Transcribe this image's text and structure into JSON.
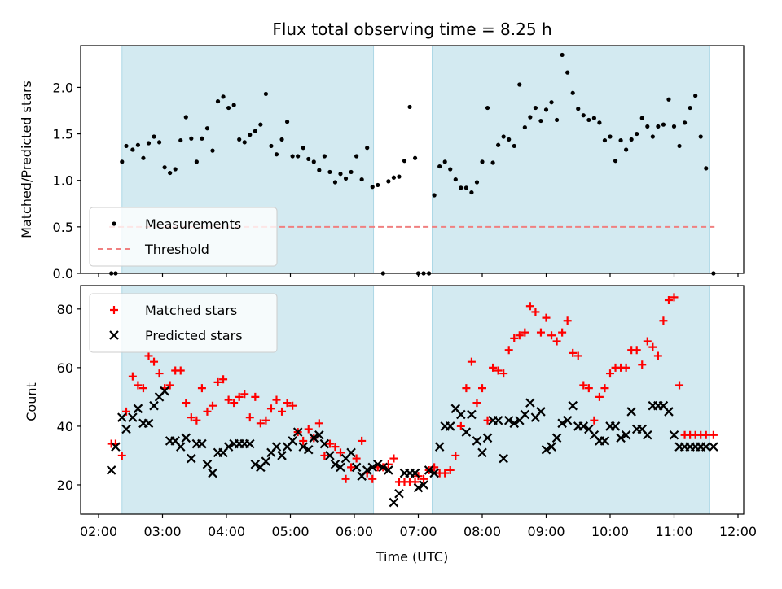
{
  "chart_data": [
    {
      "type": "scatter",
      "title": "Flux total observing time = 8.25 h",
      "xlabel": "",
      "ylabel": "Matched/Predicted stars",
      "ylim": [
        0,
        2.45
      ],
      "xlim": [
        "02:00",
        "12:00"
      ],
      "yticks": [
        "0.0",
        "0.5",
        "1.0",
        "1.5",
        "2.0"
      ],
      "ytick_values": [
        0,
        0.5,
        1.0,
        1.5,
        2.0
      ],
      "shaded_intervals": [
        [
          "02:22",
          "06:18"
        ],
        [
          "07:13",
          "11:33"
        ]
      ],
      "shade_color": "#d3eaf1",
      "legend_position": "lower-left",
      "threshold": {
        "name": "Threshold",
        "y": 0.5,
        "x_range": [
          "02:10",
          "11:38"
        ],
        "color": "#f08080",
        "style": "dashed"
      },
      "series": [
        {
          "name": "Measurements",
          "color": "#000000",
          "marker": "dot",
          "x": [
            "02:12",
            "02:16",
            "02:22",
            "02:26",
            "02:32",
            "02:37",
            "02:42",
            "02:47",
            "02:52",
            "02:57",
            "03:02",
            "03:07",
            "03:12",
            "03:17",
            "03:22",
            "03:27",
            "03:32",
            "03:37",
            "03:42",
            "03:47",
            "03:52",
            "03:57",
            "04:02",
            "04:07",
            "04:12",
            "04:17",
            "04:22",
            "04:27",
            "04:32",
            "04:37",
            "04:42",
            "04:47",
            "04:52",
            "04:57",
            "05:02",
            "05:07",
            "05:12",
            "05:17",
            "05:22",
            "05:27",
            "05:32",
            "05:37",
            "05:42",
            "05:47",
            "05:52",
            "05:57",
            "06:02",
            "06:07",
            "06:12",
            "06:17",
            "06:22",
            "06:27",
            "06:32",
            "06:37",
            "06:42",
            "06:47",
            "06:52",
            "06:57",
            "07:00",
            "07:05",
            "07:10",
            "07:15",
            "07:20",
            "07:25",
            "07:30",
            "07:35",
            "07:40",
            "07:45",
            "07:50",
            "07:55",
            "08:00",
            "08:05",
            "08:10",
            "08:15",
            "08:20",
            "08:25",
            "08:30",
            "08:35",
            "08:40",
            "08:45",
            "08:50",
            "08:55",
            "09:00",
            "09:05",
            "09:10",
            "09:15",
            "09:20",
            "09:25",
            "09:30",
            "09:35",
            "09:40",
            "09:45",
            "09:50",
            "09:55",
            "10:00",
            "10:05",
            "10:10",
            "10:15",
            "10:20",
            "10:25",
            "10:30",
            "10:35",
            "10:40",
            "10:45",
            "10:50",
            "10:55",
            "11:00",
            "11:05",
            "11:10",
            "11:15",
            "11:20",
            "11:25",
            "11:30",
            "11:37"
          ],
          "y": [
            0,
            0,
            1.2,
            1.37,
            1.33,
            1.38,
            1.24,
            1.4,
            1.47,
            1.41,
            1.14,
            1.08,
            1.12,
            1.43,
            1.68,
            1.45,
            1.2,
            1.45,
            1.56,
            1.32,
            1.85,
            1.9,
            1.78,
            1.81,
            1.44,
            1.41,
            1.49,
            1.53,
            1.6,
            1.93,
            1.37,
            1.28,
            1.44,
            1.63,
            1.26,
            1.26,
            1.35,
            1.23,
            1.2,
            1.11,
            1.26,
            1.09,
            0.98,
            1.07,
            1.02,
            1.09,
            1.26,
            1.01,
            1.35,
            0.93,
            0.95,
            0,
            0.99,
            1.03,
            1.04,
            1.21,
            1.79,
            1.24,
            0,
            0,
            0,
            0.84,
            1.15,
            1.2,
            1.12,
            1.01,
            0.92,
            0.92,
            0.87,
            0.98,
            1.2,
            1.78,
            1.19,
            1.38,
            1.47,
            1.44,
            1.37,
            2.03,
            1.57,
            1.68,
            1.78,
            1.64,
            1.76,
            1.84,
            1.65,
            2.35,
            2.16,
            1.94,
            1.77,
            1.7,
            1.65,
            1.67,
            1.62,
            1.43,
            1.47,
            1.21,
            1.43,
            1.33,
            1.44,
            1.5,
            1.67,
            1.58,
            1.47,
            1.58,
            1.6,
            1.87,
            1.58,
            1.37,
            1.62,
            1.78,
            1.91,
            1.47,
            1.13,
            0
          ]
        }
      ]
    },
    {
      "type": "scatter",
      "title": "",
      "xlabel": "Time (UTC)",
      "ylabel": "Count",
      "ylim": [
        10,
        88
      ],
      "xlim": [
        "02:00",
        "12:00"
      ],
      "yticks": [
        "20",
        "40",
        "60",
        "80"
      ],
      "ytick_values": [
        20,
        40,
        60,
        80
      ],
      "xticks": [
        "02:00",
        "03:00",
        "04:00",
        "05:00",
        "06:00",
        "07:00",
        "08:00",
        "09:00",
        "10:00",
        "11:00",
        "12:00"
      ],
      "shaded_intervals": [
        [
          "02:22",
          "06:18"
        ],
        [
          "07:13",
          "11:33"
        ]
      ],
      "shade_color": "#d3eaf1",
      "legend_position": "upper-left",
      "series": [
        {
          "name": "Matched stars",
          "color": "#ff0000",
          "marker": "plus",
          "x": [
            "02:12",
            "02:16",
            "02:22",
            "02:26",
            "02:32",
            "02:37",
            "02:42",
            "02:47",
            "02:52",
            "02:57",
            "03:02",
            "03:07",
            "03:12",
            "03:17",
            "03:22",
            "03:27",
            "03:32",
            "03:37",
            "03:42",
            "03:47",
            "03:52",
            "03:57",
            "04:02",
            "04:07",
            "04:12",
            "04:17",
            "04:22",
            "04:27",
            "04:32",
            "04:37",
            "04:42",
            "04:47",
            "04:52",
            "04:57",
            "05:02",
            "05:07",
            "05:12",
            "05:17",
            "05:22",
            "05:27",
            "05:32",
            "05:37",
            "05:42",
            "05:47",
            "05:52",
            "05:57",
            "06:02",
            "06:07",
            "06:12",
            "06:17",
            "06:22",
            "06:27",
            "06:32",
            "06:37",
            "06:42",
            "06:47",
            "06:52",
            "06:57",
            "07:00",
            "07:05",
            "07:10",
            "07:15",
            "07:20",
            "07:25",
            "07:30",
            "07:35",
            "07:40",
            "07:45",
            "07:50",
            "07:55",
            "08:00",
            "08:05",
            "08:10",
            "08:15",
            "08:20",
            "08:25",
            "08:30",
            "08:35",
            "08:40",
            "08:45",
            "08:50",
            "08:55",
            "09:00",
            "09:05",
            "09:10",
            "09:15",
            "09:20",
            "09:25",
            "09:30",
            "09:35",
            "09:40",
            "09:45",
            "09:50",
            "09:55",
            "10:00",
            "10:05",
            "10:10",
            "10:15",
            "10:20",
            "10:25",
            "10:30",
            "10:35",
            "10:40",
            "10:45",
            "10:50",
            "10:55",
            "11:00",
            "11:05",
            "11:10",
            "11:15",
            "11:20",
            "11:25",
            "11:30",
            "11:37"
          ],
          "y": [
            34,
            34,
            30,
            45,
            57,
            54,
            53,
            64,
            62,
            58,
            53,
            54,
            59,
            59,
            48,
            43,
            42,
            53,
            45,
            47,
            55,
            56,
            49,
            48,
            50,
            51,
            43,
            50,
            41,
            42,
            46,
            49,
            45,
            48,
            47,
            38,
            35,
            39,
            36,
            41,
            30,
            34,
            33,
            31,
            22,
            26,
            29,
            35,
            24,
            22,
            26,
            26,
            27,
            29,
            21,
            21,
            21,
            21,
            23,
            22,
            25,
            26,
            24,
            24,
            25,
            30,
            40,
            53,
            62,
            48,
            53,
            42,
            60,
            59,
            58,
            66,
            70,
            71,
            72,
            81,
            79,
            72,
            77,
            71,
            69,
            72,
            76,
            65,
            64,
            54,
            53,
            42,
            50,
            53,
            58,
            60,
            60,
            60,
            66,
            66,
            61,
            69,
            67,
            64,
            76,
            83,
            84,
            54,
            37,
            37,
            37,
            37,
            37,
            37
          ],
          "y_note": ""
        },
        {
          "name": "Predicted stars",
          "color": "#000000",
          "marker": "x",
          "x": [
            "02:12",
            "02:16",
            "02:22",
            "02:26",
            "02:32",
            "02:37",
            "02:42",
            "02:47",
            "02:52",
            "02:57",
            "03:02",
            "03:07",
            "03:12",
            "03:17",
            "03:22",
            "03:27",
            "03:32",
            "03:37",
            "03:42",
            "03:47",
            "03:52",
            "03:57",
            "04:02",
            "04:07",
            "04:12",
            "04:17",
            "04:22",
            "04:27",
            "04:32",
            "04:37",
            "04:42",
            "04:47",
            "04:52",
            "04:57",
            "05:02",
            "05:07",
            "05:12",
            "05:17",
            "05:22",
            "05:27",
            "05:32",
            "05:37",
            "05:42",
            "05:47",
            "05:52",
            "05:57",
            "06:02",
            "06:07",
            "06:12",
            "06:17",
            "06:22",
            "06:27",
            "06:32",
            "06:37",
            "06:42",
            "06:47",
            "06:52",
            "06:57",
            "07:00",
            "07:05",
            "07:10",
            "07:15",
            "07:20",
            "07:25",
            "07:30",
            "07:35",
            "07:40",
            "07:45",
            "07:50",
            "07:55",
            "08:00",
            "08:05",
            "08:10",
            "08:15",
            "08:20",
            "08:25",
            "08:30",
            "08:35",
            "08:40",
            "08:45",
            "08:50",
            "08:55",
            "09:00",
            "09:05",
            "09:10",
            "09:15",
            "09:20",
            "09:25",
            "09:30",
            "09:35",
            "09:40",
            "09:45",
            "09:50",
            "09:55",
            "10:00",
            "10:05",
            "10:10",
            "10:15",
            "10:20",
            "10:25",
            "10:30",
            "10:35",
            "10:40",
            "10:45",
            "10:50",
            "10:55",
            "11:00",
            "11:05",
            "11:10",
            "11:15",
            "11:20",
            "11:25",
            "11:30",
            "11:37"
          ],
          "y": [
            25,
            33,
            43,
            39,
            43,
            46,
            41,
            41,
            47,
            50,
            52,
            35,
            35,
            33,
            36,
            29,
            34,
            34,
            27,
            24,
            31,
            31,
            33,
            34,
            34,
            34,
            34,
            27,
            26,
            28,
            31,
            33,
            30,
            33,
            35,
            38,
            33,
            32,
            36,
            37,
            34,
            30,
            27,
            26,
            29,
            31,
            26,
            23,
            25,
            26,
            27,
            26,
            25,
            14,
            17,
            24,
            24,
            24,
            19,
            20,
            25,
            24,
            33,
            40,
            40,
            46,
            44,
            38,
            44,
            35,
            31,
            36,
            42,
            42,
            29,
            42,
            41,
            42,
            44,
            48,
            43,
            45,
            32,
            33,
            36,
            41,
            42,
            47,
            40,
            40,
            39,
            37,
            35,
            35,
            40,
            40,
            36,
            37,
            45,
            39,
            39,
            37,
            47,
            47,
            47,
            45,
            37,
            33,
            33,
            33,
            33,
            33,
            33,
            33
          ],
          "y_note": ""
        }
      ]
    }
  ]
}
